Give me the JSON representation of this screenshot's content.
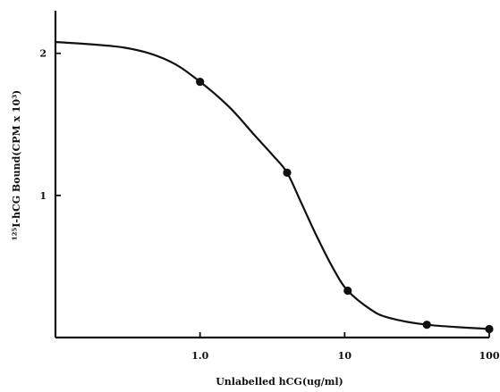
{
  "chart_data": {
    "type": "line",
    "title": "",
    "xlabel": "Unlabelled hCG(ug/ml)",
    "ylabel": "¹²⁵I-hCG Bound(CPM x 10³)",
    "xscale": "log",
    "xlim": [
      0.1,
      100
    ],
    "ylim": [
      0,
      2.3
    ],
    "xticks": [
      {
        "value": 1,
        "label": "1.0"
      },
      {
        "value": 10,
        "label": "10"
      },
      {
        "value": 100,
        "label": "100"
      }
    ],
    "yticks": [
      {
        "value": 1,
        "label": "1"
      },
      {
        "value": 2,
        "label": "2"
      }
    ],
    "grid": false,
    "legend": "none",
    "series": [
      {
        "x": [
          0.1,
          0.3,
          0.6,
          1.0,
          1.6,
          2.4,
          3.2,
          4.0,
          5.0,
          6.5,
          8.5,
          10.5,
          15,
          20,
          37,
          100
        ],
        "y": [
          2.08,
          2.04,
          1.95,
          1.8,
          1.62,
          1.42,
          1.28,
          1.16,
          0.95,
          0.7,
          0.47,
          0.33,
          0.2,
          0.14,
          0.09,
          0.06
        ]
      }
    ],
    "markers": {
      "x": [
        1.0,
        4.0,
        10.5,
        37,
        100
      ],
      "y": [
        1.8,
        1.16,
        0.33,
        0.09,
        0.06
      ]
    },
    "color": "#111111"
  }
}
